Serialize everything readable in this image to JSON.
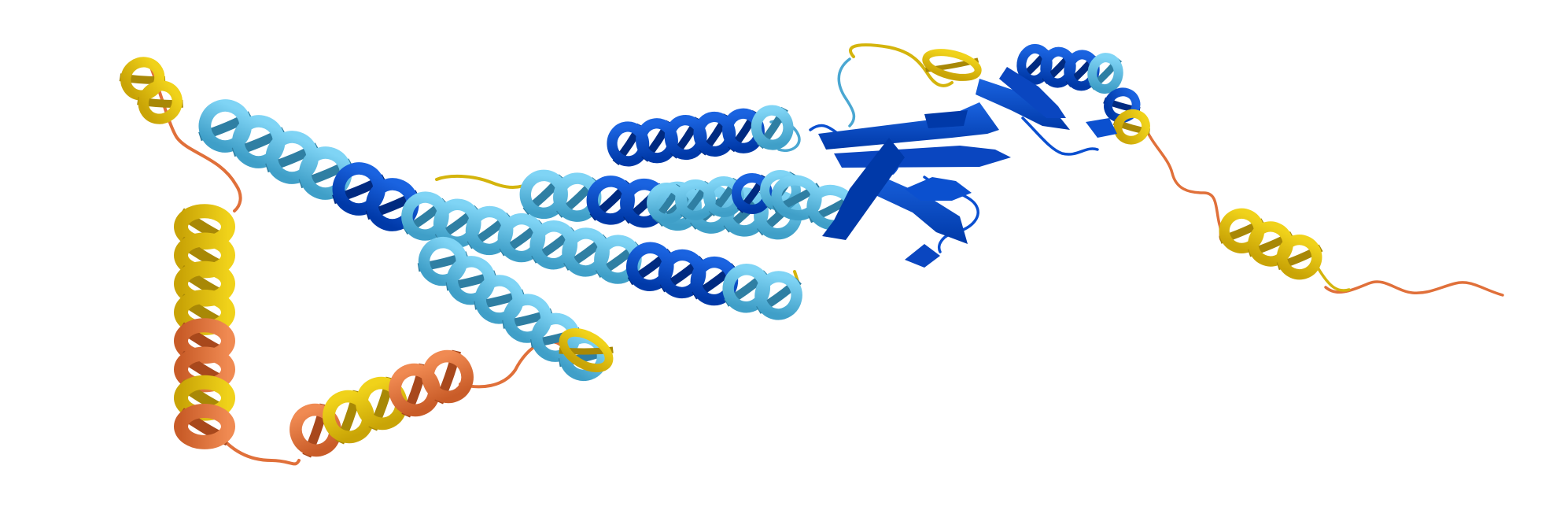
{
  "image": {
    "subject": "protein-structure-ribbon",
    "background": "#ffffff",
    "confidence_palette": {
      "very_high": "#0053D6",
      "high": "#65CBF3",
      "low": "#FFDB13",
      "very_low": "#FF7D45"
    }
  }
}
